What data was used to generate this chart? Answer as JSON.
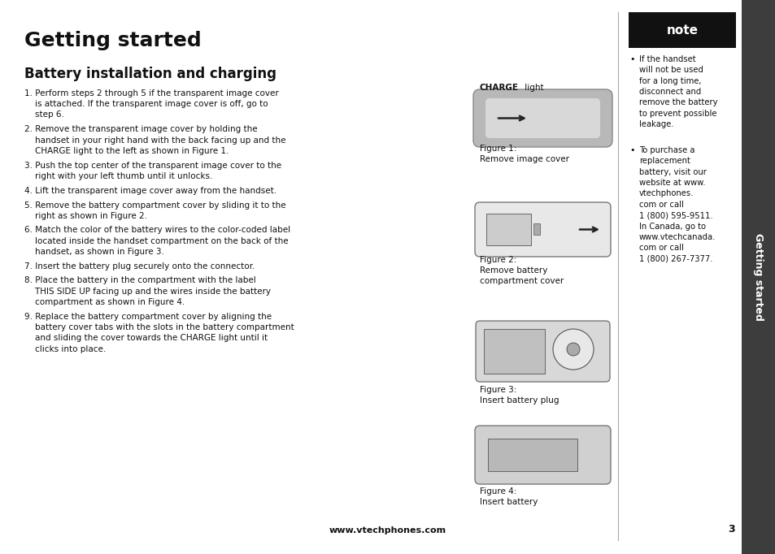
{
  "bg_color": "#ffffff",
  "title": "Getting started",
  "subtitle": "Battery installation and charging",
  "note_text": "note",
  "bullet1_lines": [
    "If the handset",
    "will not be used",
    "for a long time,",
    "disconnect and",
    "remove the battery",
    "to prevent possible",
    "leakage."
  ],
  "bullet2_lines": [
    "To purchase a",
    "replacement",
    "battery, visit our",
    "website at www.",
    "vtechphones.",
    "com or call",
    "1 (800) 595-9511.",
    "In Canada, go to",
    "www.vtechcanada.",
    "com or call",
    "1 (800) 267-7377."
  ],
  "footer": "www.vtechphones.com",
  "page_num": "3",
  "sidebar_text": "Getting started",
  "sidebar_bg": "#3d3d3d",
  "sidebar_text_color": "#ffffff",
  "divider_color": "#aaaaaa",
  "step1": "1. Perform steps 2 through 5 if the transparent image cover\n    is attached. If the transparent image cover is off, go to\n    step 6.",
  "step2a": "2. Remove the transparent image cover by holding the\n    handset in your right hand with the back facing up and the\n    ",
  "step2b": "CHARGE",
  "step2c": " light to the left as shown in Figure 1.",
  "step3": "3. Push the top center of the transparent image cover to the\n    right with your left thumb until it unlocks.",
  "step4": "4. Lift the transparent image cover away from the handset.",
  "step5": "5. Remove the battery compartment cover by sliding it to the\n    right as shown in Figure 2.",
  "step6": "6. Match the color of the battery wires to the color-coded label\n    located inside the handset compartment on the back of the\n    handset, as shown in Figure 3.",
  "step7": "7. Insert the battery plug securely onto the connector.",
  "step8a": "8. Place the battery in the compartment with the label\n    ",
  "step8b": "THIS SIDE UP",
  "step8c": " facing up and the wires inside the battery\n    compartment as shown in Figure 4.",
  "step9a": "9. Replace the battery compartment cover by aligning the\n    battery cover tabs with the slots in the battery compartment\n    and sliding the cover towards the ",
  "step9b": "CHARGE",
  "step9c": " light until it\n    clicks into place."
}
